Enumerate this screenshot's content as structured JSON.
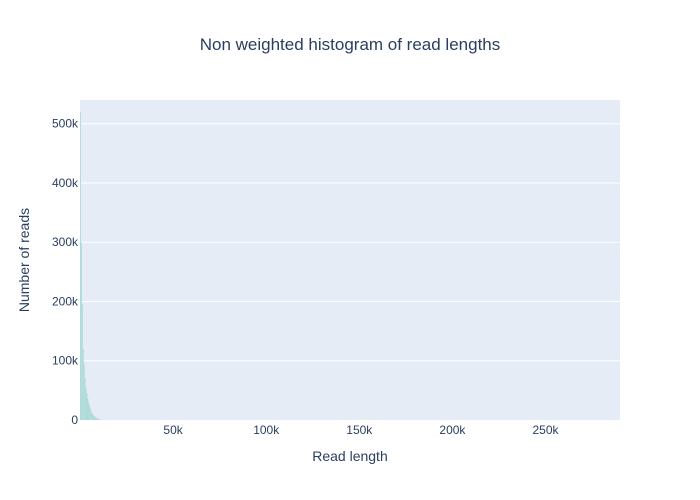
{
  "chart_data": {
    "type": "bar",
    "title": "Non weighted histogram of read lengths",
    "xlabel": "Read length",
    "ylabel": "Number of reads",
    "xlim": [
      0,
      290000
    ],
    "ylim": [
      0,
      540000
    ],
    "x_ticks": [
      {
        "value": 50000,
        "label": "50k"
      },
      {
        "value": 100000,
        "label": "100k"
      },
      {
        "value": 150000,
        "label": "150k"
      },
      {
        "value": 200000,
        "label": "200k"
      },
      {
        "value": 250000,
        "label": "250k"
      }
    ],
    "y_ticks": [
      {
        "value": 0,
        "label": "0"
      },
      {
        "value": 100000,
        "label": "100k"
      },
      {
        "value": 200000,
        "label": "200k"
      },
      {
        "value": 300000,
        "label": "300k"
      },
      {
        "value": 400000,
        "label": "400k"
      },
      {
        "value": 500000,
        "label": "500k"
      }
    ],
    "bin_width": 500,
    "x": [
      250,
      750,
      1250,
      1750,
      2250,
      2750,
      3250,
      3750,
      4250,
      4750,
      5250,
      5750,
      6250,
      6750,
      7250,
      7750,
      8250,
      8750,
      9250,
      9750,
      10250,
      10750,
      11250
    ],
    "values": [
      520000,
      300000,
      195000,
      120000,
      95000,
      70000,
      55000,
      45000,
      36000,
      29000,
      23000,
      18000,
      14000,
      11000,
      8500,
      6500,
      5000,
      3800,
      2800,
      2000,
      1400,
      900,
      500
    ],
    "grid": true,
    "colors": {
      "bar": "#aedad6",
      "plot_background": "#e5ecf6",
      "grid": "#ffffff",
      "text": "#2a3f5f"
    }
  }
}
